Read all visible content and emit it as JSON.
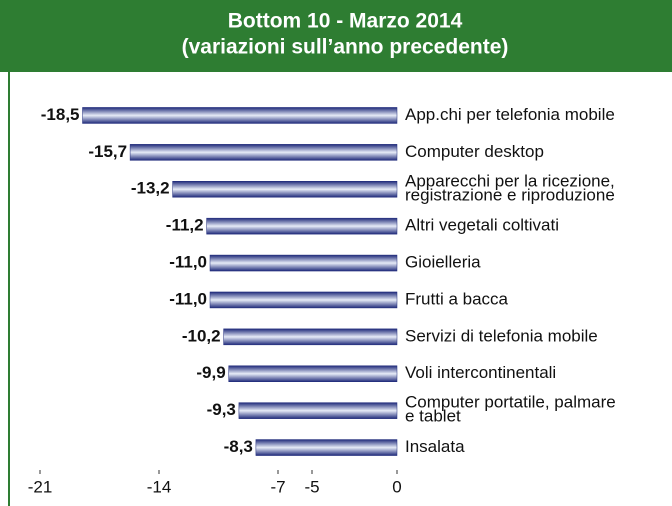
{
  "chart_data": {
    "type": "bar",
    "orientation": "horizontal",
    "title": "Bottom 10 - Marzo 2014",
    "subtitle": "(variazioni sull’anno precedente)",
    "categories": [
      "App.chi per telefonia mobile",
      "Computer desktop",
      "Apparecchi per la ricezione,\nregistrazione e riproduzione",
      "Altri vegetali coltivati",
      "Gioielleria",
      "Frutti a bacca",
      "Servizi di telefonia mobile",
      "Voli intercontinentali",
      "Computer portatile, palmare\ne tablet",
      "Insalata"
    ],
    "values": [
      -18.5,
      -15.7,
      -13.2,
      -11.2,
      -11.0,
      -11.0,
      -10.2,
      -9.9,
      -9.3,
      -8.3
    ],
    "value_labels": [
      "-18,5",
      "-15,7",
      "-13,2",
      "-11,2",
      "-11,0",
      "-11,0",
      "-10,2",
      "-9,9",
      "-9,3",
      "-8,3"
    ],
    "color": "#1f2a7a",
    "xlim": [
      -21,
      0
    ],
    "xticks": [
      -21,
      -14,
      -7,
      -5,
      0
    ]
  }
}
